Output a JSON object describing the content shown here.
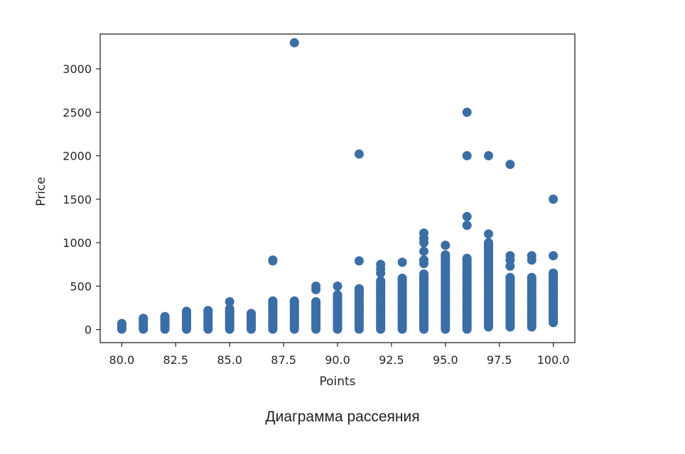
{
  "chart_data": {
    "type": "scatter",
    "title": "",
    "xlabel": "Points",
    "ylabel": "Price",
    "xlim": [
      79.0,
      101.0
    ],
    "ylim": [
      -150,
      3400
    ],
    "x_ticks": [
      "80.0",
      "82.5",
      "85.0",
      "87.5",
      "90.0",
      "92.5",
      "95.0",
      "97.5",
      "100.0"
    ],
    "y_ticks": [
      "0",
      "500",
      "1000",
      "1500",
      "2000",
      "2500",
      "3000"
    ],
    "grid": false,
    "marker_color": "#3a6ea5",
    "columns": [
      {
        "x": 80,
        "min": 5,
        "max": 70,
        "extra": []
      },
      {
        "x": 81,
        "min": 5,
        "max": 130,
        "extra": []
      },
      {
        "x": 82,
        "min": 5,
        "max": 150,
        "extra": []
      },
      {
        "x": 83,
        "min": 5,
        "max": 210,
        "extra": []
      },
      {
        "x": 84,
        "min": 5,
        "max": 220,
        "extra": []
      },
      {
        "x": 85,
        "min": 5,
        "max": 240,
        "extra": [
          320
        ]
      },
      {
        "x": 86,
        "min": 5,
        "max": 185,
        "extra": []
      },
      {
        "x": 87,
        "min": 5,
        "max": 330,
        "extra": [
          790,
          800
        ]
      },
      {
        "x": 88,
        "min": 5,
        "max": 330,
        "extra": [
          3300
        ]
      },
      {
        "x": 89,
        "min": 5,
        "max": 320,
        "extra": [
          460,
          500
        ]
      },
      {
        "x": 90,
        "min": 5,
        "max": 400,
        "extra": [
          500
        ]
      },
      {
        "x": 91,
        "min": 5,
        "max": 470,
        "extra": [
          790,
          2020
        ]
      },
      {
        "x": 92,
        "min": 5,
        "max": 560,
        "extra": [
          650,
          700,
          750
        ]
      },
      {
        "x": 93,
        "min": 5,
        "max": 590,
        "extra": [
          775
        ]
      },
      {
        "x": 94,
        "min": 5,
        "max": 640,
        "extra": [
          760,
          800,
          900,
          1000,
          1050,
          1110
        ]
      },
      {
        "x": 95,
        "min": 5,
        "max": 860,
        "extra": [
          970
        ]
      },
      {
        "x": 96,
        "min": 5,
        "max": 820,
        "extra": [
          1200,
          1300,
          2000,
          2500
        ]
      },
      {
        "x": 97,
        "min": 30,
        "max": 1000,
        "extra": [
          1100,
          2000
        ]
      },
      {
        "x": 98,
        "min": 30,
        "max": 600,
        "extra": [
          730,
          800,
          850,
          1900
        ]
      },
      {
        "x": 99,
        "min": 30,
        "max": 600,
        "extra": [
          800,
          850
        ]
      },
      {
        "x": 100,
        "min": 80,
        "max": 650,
        "extra": [
          850,
          1500
        ]
      }
    ]
  },
  "caption": "Диаграмма рассеяния"
}
